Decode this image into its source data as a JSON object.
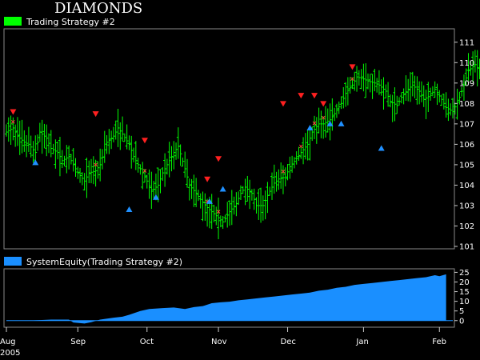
{
  "chart_data": [
    {
      "type": "ohlc",
      "title": "DIAMONDS",
      "legend": [
        {
          "name": "Trading Strategy #2",
          "color": "#00ff00"
        }
      ],
      "ylim": [
        101,
        111.5
      ],
      "yticks": [
        101,
        102,
        103,
        104,
        105,
        106,
        107,
        108,
        109,
        110,
        111
      ],
      "bar_color": "#00ff00",
      "close_path": [
        [
          0,
          106.6
        ],
        [
          3,
          106.8
        ],
        [
          5,
          106.4
        ],
        [
          8,
          106.1
        ],
        [
          10,
          106.0
        ],
        [
          13,
          105.6
        ],
        [
          15,
          106.6
        ],
        [
          18,
          106.3
        ],
        [
          20,
          105.8
        ],
        [
          23,
          105.6
        ],
        [
          25,
          105.2
        ],
        [
          28,
          105.4
        ],
        [
          30,
          105.0
        ],
        [
          32,
          104.6
        ],
        [
          35,
          104.2
        ],
        [
          37,
          104.6
        ],
        [
          40,
          104.7
        ],
        [
          42,
          105.0
        ],
        [
          45,
          106.1
        ],
        [
          48,
          106.4
        ],
        [
          50,
          106.8
        ],
        [
          52,
          106.5
        ],
        [
          55,
          106.0
        ],
        [
          57,
          105.4
        ],
        [
          60,
          104.8
        ],
        [
          63,
          104.2
        ],
        [
          65,
          103.7
        ],
        [
          68,
          104.0
        ],
        [
          70,
          104.6
        ],
        [
          72,
          105.0
        ],
        [
          75,
          105.6
        ],
        [
          77,
          105.9
        ],
        [
          80,
          104.8
        ],
        [
          82,
          104.0
        ],
        [
          85,
          103.6
        ],
        [
          87,
          103.3
        ],
        [
          90,
          102.9
        ],
        [
          92,
          102.7
        ],
        [
          95,
          102.4
        ],
        [
          97,
          102.2
        ],
        [
          100,
          102.7
        ],
        [
          103,
          103.1
        ],
        [
          105,
          103.6
        ],
        [
          107,
          103.9
        ],
        [
          110,
          103.6
        ],
        [
          112,
          103.0
        ],
        [
          115,
          103.0
        ],
        [
          117,
          103.5
        ],
        [
          120,
          104.1
        ],
        [
          122,
          104.3
        ],
        [
          125,
          104.4
        ],
        [
          127,
          104.9
        ],
        [
          130,
          105.3
        ],
        [
          132,
          105.6
        ],
        [
          135,
          106.0
        ],
        [
          137,
          106.6
        ],
        [
          140,
          107.0
        ],
        [
          142,
          107.0
        ],
        [
          145,
          107.2
        ],
        [
          147,
          107.5
        ],
        [
          150,
          108.0
        ],
        [
          152,
          108.5
        ],
        [
          155,
          108.9
        ],
        [
          157,
          109.3
        ],
        [
          160,
          109.2
        ],
        [
          162,
          109.1
        ],
        [
          165,
          109.0
        ],
        [
          167,
          108.9
        ],
        [
          170,
          108.6
        ],
        [
          172,
          108.1
        ],
        [
          175,
          107.9
        ],
        [
          177,
          108.3
        ],
        [
          180,
          108.7
        ],
        [
          182,
          108.9
        ],
        [
          185,
          108.6
        ],
        [
          187,
          108.2
        ],
        [
          190,
          108.4
        ],
        [
          192,
          108.7
        ],
        [
          195,
          108.2
        ],
        [
          197,
          107.8
        ],
        [
          200,
          107.6
        ],
        [
          203,
          108.3
        ],
        [
          205,
          108.9
        ],
        [
          207,
          109.6
        ],
        [
          210,
          109.9
        ],
        [
          212,
          109.6
        ],
        [
          215,
          109.3
        ],
        [
          217,
          108.9
        ],
        [
          220,
          108.6
        ],
        [
          222,
          107.5
        ],
        [
          225,
          107.0
        ],
        [
          227,
          107.6
        ],
        [
          230,
          108.2
        ],
        [
          232,
          108.7
        ],
        [
          235,
          109.0
        ],
        [
          237,
          108.9
        ]
      ],
      "sell_signals": [
        [
          3,
          107.6
        ],
        [
          40,
          107.5
        ],
        [
          62,
          106.2
        ],
        [
          90,
          104.3
        ],
        [
          95,
          105.3
        ],
        [
          124,
          108.0
        ],
        [
          132,
          108.4
        ],
        [
          138,
          108.4
        ],
        [
          142,
          108.0
        ],
        [
          155,
          109.8
        ]
      ],
      "buy_signals": [
        [
          13,
          105.1
        ],
        [
          55,
          102.8
        ],
        [
          67,
          103.4
        ],
        [
          91,
          103.2
        ],
        [
          97,
          103.8
        ],
        [
          136,
          106.8
        ],
        [
          145,
          107.0
        ],
        [
          150,
          107.0
        ],
        [
          168,
          105.8
        ]
      ],
      "x_tick_labels": [
        "Aug",
        "Sep",
        "Oct",
        "Nov",
        "Dec",
        "Jan",
        "Feb"
      ],
      "x_tick_positions": [
        0,
        32,
        63,
        95,
        126,
        160,
        194
      ],
      "year_label": "2005"
    },
    {
      "type": "area",
      "legend": [
        {
          "name": "SystemEquity(Trading Strategy #2)",
          "color": "#1a8fff"
        }
      ],
      "ylim": [
        -3,
        26
      ],
      "yticks": [
        0,
        5,
        10,
        15,
        20,
        25
      ],
      "color": "#1a8fff",
      "values_path": [
        [
          0,
          0
        ],
        [
          10,
          0
        ],
        [
          20,
          0.5
        ],
        [
          28,
          0.5
        ],
        [
          30,
          -1
        ],
        [
          35,
          -1.5
        ],
        [
          38,
          -0.8
        ],
        [
          42,
          0.5
        ],
        [
          48,
          1.5
        ],
        [
          52,
          2
        ],
        [
          55,
          3
        ],
        [
          60,
          5
        ],
        [
          64,
          6
        ],
        [
          70,
          6.5
        ],
        [
          75,
          6.8
        ],
        [
          80,
          6
        ],
        [
          84,
          7
        ],
        [
          88,
          7.5
        ],
        [
          92,
          9
        ],
        [
          96,
          9.5
        ],
        [
          100,
          9.8
        ],
        [
          104,
          10.5
        ],
        [
          108,
          11
        ],
        [
          112,
          11.5
        ],
        [
          116,
          12
        ],
        [
          120,
          12.5
        ],
        [
          124,
          13
        ],
        [
          128,
          13.5
        ],
        [
          132,
          14
        ],
        [
          136,
          14.5
        ],
        [
          140,
          15.5
        ],
        [
          144,
          16
        ],
        [
          148,
          17
        ],
        [
          152,
          17.5
        ],
        [
          156,
          18.5
        ],
        [
          160,
          19
        ],
        [
          164,
          19.5
        ],
        [
          168,
          20
        ],
        [
          172,
          20.5
        ],
        [
          176,
          21
        ],
        [
          180,
          21.5
        ],
        [
          184,
          22
        ],
        [
          188,
          22.5
        ],
        [
          192,
          23.5
        ],
        [
          194,
          23
        ],
        [
          197,
          24
        ]
      ]
    }
  ]
}
